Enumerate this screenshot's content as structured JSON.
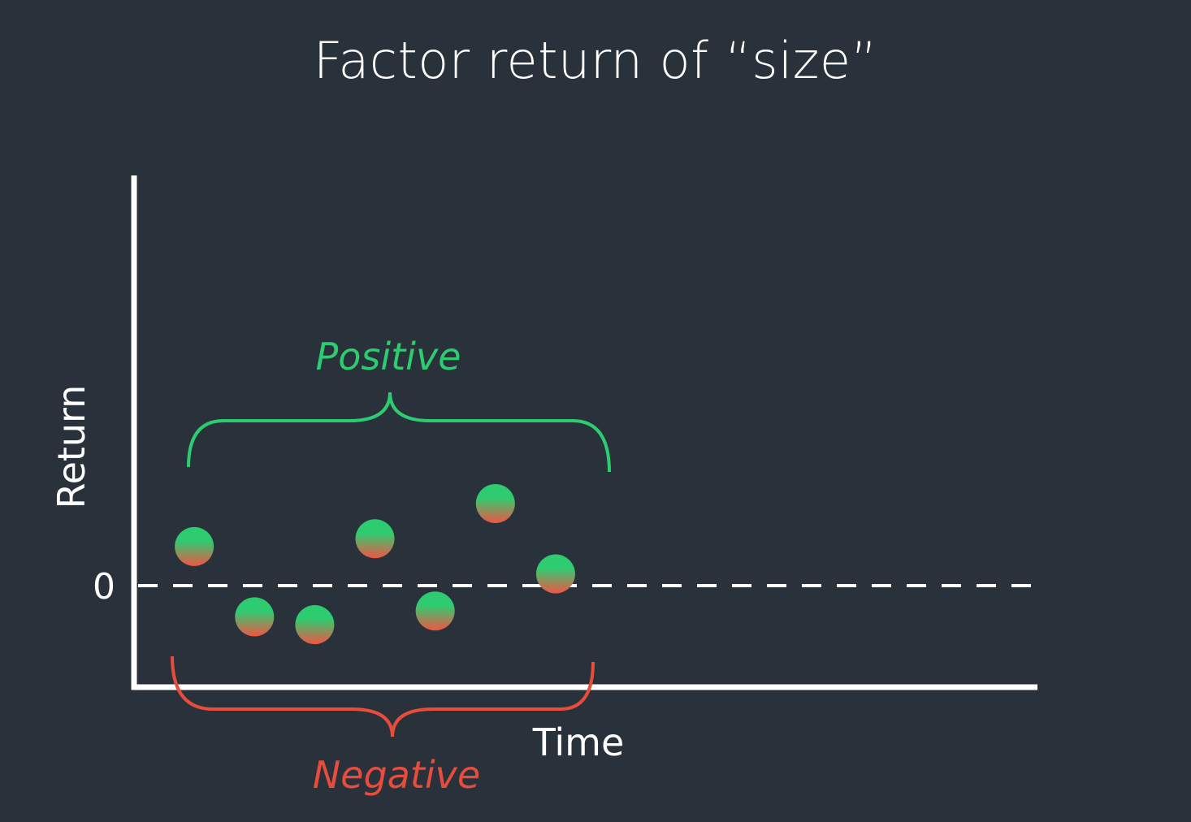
{
  "chart_data": {
    "type": "scatter",
    "title": "Factor return of “size”",
    "xlabel": "Time",
    "ylabel": "Return",
    "ytick_labels": [
      "0"
    ],
    "zero_line": "dashed",
    "grid": false,
    "x": [
      1,
      2,
      3,
      4,
      5,
      6,
      7
    ],
    "y": [
      1.0,
      -0.8,
      -1.0,
      1.2,
      -0.65,
      2.1,
      0.3
    ],
    "xlim": [
      0,
      15
    ],
    "ylim": [
      -2.6,
      10.5
    ],
    "annotations": [
      {
        "text": "Positive",
        "color": "#2ecc71",
        "bracket": "above points",
        "style": "italic"
      },
      {
        "text": "Negative",
        "color": "#e74c3c",
        "bracket": "below points",
        "style": "italic"
      }
    ],
    "colors": {
      "background": "#29323b",
      "axis": "#ffffff",
      "positive": "#2ecc71",
      "negative": "#e74c3c",
      "point_top": "#2ecc71",
      "point_bottom": "#f05545"
    }
  }
}
